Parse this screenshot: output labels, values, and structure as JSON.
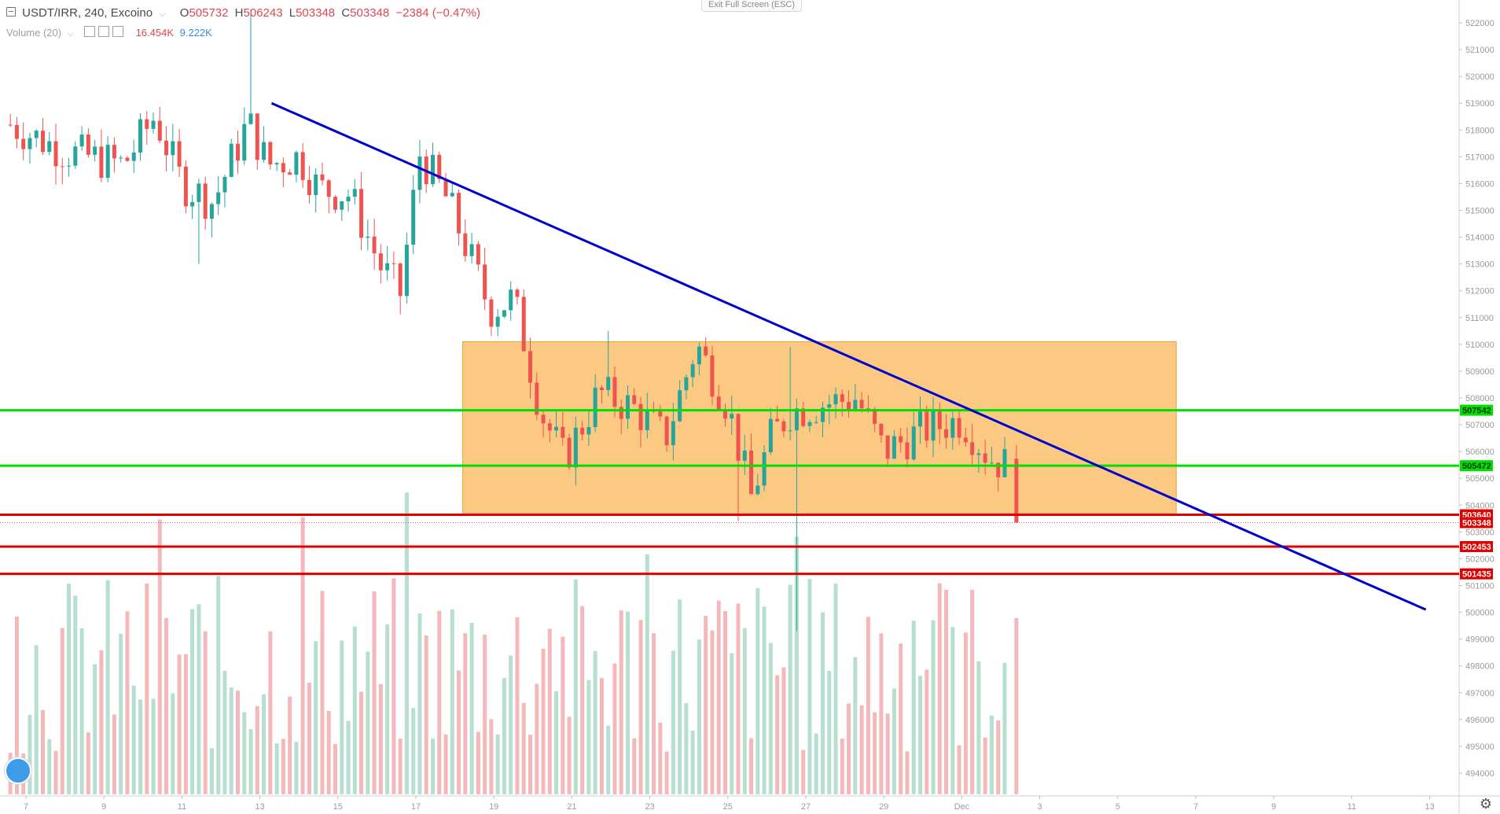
{
  "header": {
    "symbol": "USDT/IRR, 240, Excoino",
    "open_label": "O",
    "open": "505732",
    "high_label": "H",
    "high": "506243",
    "low_label": "L",
    "low": "503348",
    "close_label": "C",
    "close": "503348",
    "change": "−2384 (−0.47%)",
    "volume_label": "Volume (20)",
    "volume_value_1": "16.454K",
    "volume_value_2": "9.222K",
    "exit_fullscreen": "Exit Full Screen (ESC)"
  },
  "colors": {
    "up": "#26a69a",
    "down": "#ef5350",
    "vol_up": "#b7dfcf",
    "vol_down": "#f4b8bb",
    "trendline": "#0000cc",
    "zone": "#fbbf6d",
    "support_green": "#00e000",
    "support_red": "#e00000"
  },
  "chart_data": {
    "type": "candlestick",
    "interval": "240",
    "y_axis": {
      "min": 493500,
      "max": 522500,
      "ticks": [
        494000,
        495000,
        496000,
        497000,
        498000,
        499000,
        500000,
        501000,
        502000,
        503000,
        504000,
        505000,
        506000,
        507000,
        508000,
        509000,
        510000,
        511000,
        512000,
        513000,
        514000,
        515000,
        516000,
        517000,
        518000,
        519000,
        520000,
        521000,
        522000
      ]
    },
    "x_axis": {
      "ticks": [
        {
          "label": "7",
          "day": 7
        },
        {
          "label": "9",
          "day": 9
        },
        {
          "label": "11",
          "day": 11
        },
        {
          "label": "13",
          "day": 13
        },
        {
          "label": "15",
          "day": 15
        },
        {
          "label": "17",
          "day": 17
        },
        {
          "label": "19",
          "day": 19
        },
        {
          "label": "21",
          "day": 21
        },
        {
          "label": "23",
          "day": 23
        },
        {
          "label": "25",
          "day": 25
        },
        {
          "label": "27",
          "day": 27
        },
        {
          "label": "29",
          "day": 29
        },
        {
          "label": "Dec",
          "day": 31
        },
        {
          "label": "3",
          "day": 33
        },
        {
          "label": "5",
          "day": 35
        },
        {
          "label": "7",
          "day": 37
        },
        {
          "label": "9",
          "day": 39
        },
        {
          "label": "11",
          "day": 41
        },
        {
          "label": "13",
          "day": 43
        }
      ]
    },
    "anchors": [
      {
        "day": 6.6,
        "price": 518200
      },
      {
        "day": 8,
        "price": 517200
      },
      {
        "day": 9.5,
        "price": 516700
      },
      {
        "day": 10.3,
        "price": 518500
      },
      {
        "day": 11,
        "price": 516000
      },
      {
        "day": 11.8,
        "price": 515300
      },
      {
        "day": 12.7,
        "price": 518300
      },
      {
        "day": 13.2,
        "price": 516700
      },
      {
        "day": 14,
        "price": 517000
      },
      {
        "day": 14.5,
        "price": 515800
      },
      {
        "day": 15.3,
        "price": 515600
      },
      {
        "day": 16.1,
        "price": 512900
      },
      {
        "day": 16.6,
        "price": 511900
      },
      {
        "day": 17.1,
        "price": 517100
      },
      {
        "day": 17.8,
        "price": 515400
      },
      {
        "day": 18.3,
        "price": 513600
      },
      {
        "day": 18.9,
        "price": 511300
      },
      {
        "day": 19.5,
        "price": 511700
      },
      {
        "day": 19.8,
        "price": 510000
      },
      {
        "day": 20.2,
        "price": 507500
      },
      {
        "day": 20.8,
        "price": 505700
      },
      {
        "day": 21.7,
        "price": 508200
      },
      {
        "day": 22.6,
        "price": 507600
      },
      {
        "day": 23.4,
        "price": 506500
      },
      {
        "day": 24.2,
        "price": 510000
      },
      {
        "day": 25,
        "price": 507700
      },
      {
        "day": 25.6,
        "price": 504300
      },
      {
        "day": 26.1,
        "price": 506500
      },
      {
        "day": 26.6,
        "price": 507500
      },
      {
        "day": 27.5,
        "price": 507800
      },
      {
        "day": 28.3,
        "price": 508000
      },
      {
        "day": 29,
        "price": 506000
      },
      {
        "day": 30,
        "price": 506800
      },
      {
        "day": 31,
        "price": 507200
      },
      {
        "day": 31.7,
        "price": 505800
      },
      {
        "day": 32.1,
        "price": 505500
      },
      {
        "day": 32.4,
        "price": 503348
      }
    ],
    "last_candle": {
      "open": 505732,
      "high": 506243,
      "low": 503348,
      "close": 503348
    },
    "volume": {
      "max": 16454,
      "last": 9222
    },
    "annotations": {
      "trendline": {
        "start": {
          "day": 13.3,
          "price": 519000
        },
        "end": {
          "day": 42.9,
          "price": 500100
        }
      },
      "range_box": {
        "day_start": 18.2,
        "day_end": 36.5,
        "price_top": 510100,
        "price_bottom": 503640
      },
      "horizontal_levels": [
        {
          "price": 507542,
          "color": "green",
          "label": "507542"
        },
        {
          "price": 505472,
          "color": "green",
          "label": "505472"
        },
        {
          "price": 503640,
          "color": "red",
          "label": "503640"
        },
        {
          "price": 503348,
          "color": "dotted",
          "label": "503348"
        },
        {
          "price": 502453,
          "color": "red",
          "label": "502453"
        },
        {
          "price": 501435,
          "color": "red",
          "label": "501435"
        }
      ]
    }
  }
}
